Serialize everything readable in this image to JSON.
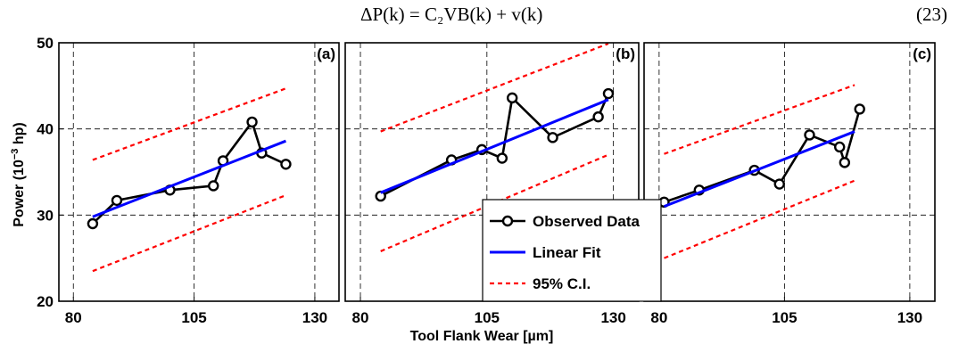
{
  "equation": {
    "text": "ΔP(k) = C₂VB(k) + v(k)",
    "number": "(23)"
  },
  "figure": {
    "ylabel_prefix": "Power (10",
    "ylabel_exp": "−3",
    "ylabel_suffix": " hp)",
    "xlabel": "Tool Flank Wear [µm]"
  },
  "legend": {
    "position": "bottom-left of panel (b)",
    "entries": [
      {
        "label": "Observed Data",
        "color": "#000000",
        "style": "line-circle"
      },
      {
        "label": "Linear Fit",
        "color": "#0000ff",
        "style": "solid"
      },
      {
        "label": "95% C.I.",
        "color": "#ff0000",
        "style": "dashed"
      }
    ]
  },
  "chart_data": [
    {
      "type": "line",
      "panel_label": "(a)",
      "xlim": [
        77,
        135
      ],
      "ylim": [
        20,
        50
      ],
      "xticks": [
        80,
        105,
        130
      ],
      "yticks": [
        20,
        30,
        40,
        50
      ],
      "grid": true,
      "series": [
        {
          "name": "Observed Data",
          "x": [
            84,
            89,
            100,
            109,
            111,
            117,
            119,
            124
          ],
          "y": [
            29.0,
            31.7,
            32.9,
            33.4,
            36.3,
            40.8,
            37.2,
            35.9
          ]
        },
        {
          "name": "Linear Fit",
          "x": [
            84,
            124
          ],
          "y": [
            29.8,
            38.6
          ]
        },
        {
          "name": "95% C.I.",
          "x": [
            84,
            124
          ],
          "y": [
            36.4,
            44.7
          ]
        },
        {
          "name": "95% C.I.",
          "x": [
            84,
            124
          ],
          "y": [
            23.5,
            32.3
          ]
        }
      ]
    },
    {
      "type": "line",
      "panel_label": "(b)",
      "xlim": [
        77,
        135
      ],
      "ylim": [
        20,
        50
      ],
      "xticks": [
        80,
        105,
        130
      ],
      "yticks": [
        20,
        30,
        40,
        50
      ],
      "grid": true,
      "series": [
        {
          "name": "Observed Data",
          "x": [
            84,
            98,
            104,
            108,
            110,
            118,
            127,
            129
          ],
          "y": [
            32.2,
            36.4,
            37.6,
            36.6,
            43.6,
            39.0,
            41.4,
            44.1
          ]
        },
        {
          "name": "Linear Fit",
          "x": [
            84,
            129
          ],
          "y": [
            32.6,
            43.4
          ]
        },
        {
          "name": "95% C.I.",
          "x": [
            84,
            129
          ],
          "y": [
            39.7,
            49.9
          ]
        },
        {
          "name": "95% C.I.",
          "x": [
            84,
            129
          ],
          "y": [
            25.8,
            37.0
          ]
        }
      ]
    },
    {
      "type": "line",
      "panel_label": "(c)",
      "xlim": [
        77,
        135
      ],
      "ylim": [
        20,
        50
      ],
      "xticks": [
        80,
        105,
        130
      ],
      "yticks": [
        20,
        30,
        40,
        50
      ],
      "grid": true,
      "series": [
        {
          "name": "Observed Data",
          "x": [
            81,
            88,
            99,
            104,
            110,
            116,
            117,
            120
          ],
          "y": [
            31.5,
            32.9,
            35.2,
            33.6,
            39.3,
            37.9,
            36.1,
            42.3
          ]
        },
        {
          "name": "Linear Fit",
          "x": [
            81,
            119
          ],
          "y": [
            31.0,
            39.7
          ]
        },
        {
          "name": "95% C.I.",
          "x": [
            81,
            119
          ],
          "y": [
            37.1,
            45.1
          ]
        },
        {
          "name": "95% C.I.",
          "x": [
            81,
            119
          ],
          "y": [
            25.0,
            34.0
          ]
        }
      ]
    }
  ]
}
